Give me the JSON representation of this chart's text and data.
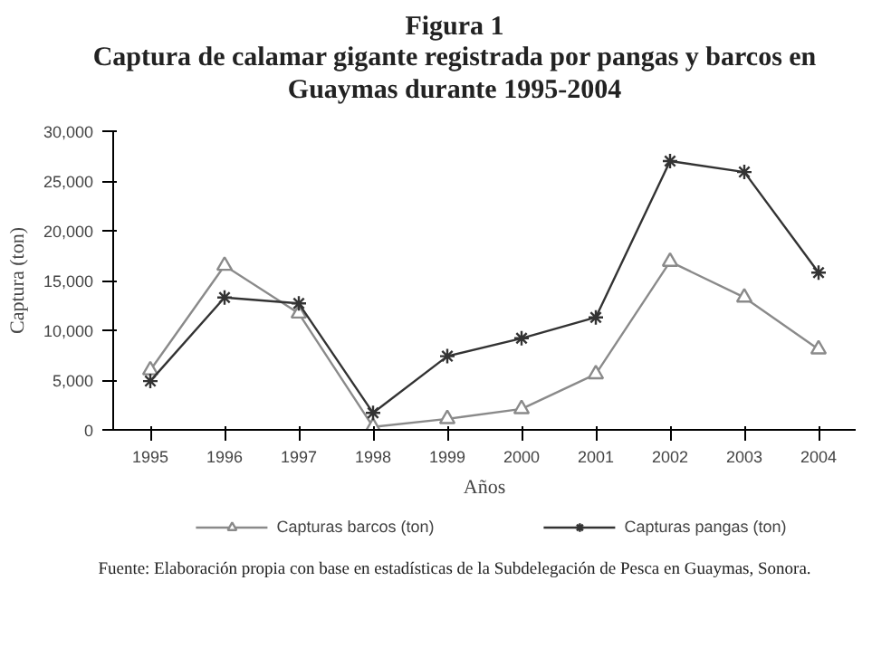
{
  "chart_data": {
    "type": "line",
    "title": "Figura 1",
    "subtitle": "Captura de calamar gigante registrada por pangas y barcos en Guaymas durante 1995-2004",
    "xlabel": "Años",
    "ylabel": "Captura (ton)",
    "categories": [
      "1995",
      "1996",
      "1997",
      "1998",
      "1999",
      "2000",
      "2001",
      "2002",
      "2003",
      "2004"
    ],
    "series": [
      {
        "name": "Capturas barcos (ton)",
        "color": "#8a8a8a",
        "marker": "triangle",
        "values": [
          6000,
          16500,
          11700,
          300,
          1100,
          2100,
          5600,
          16900,
          13300,
          8100
        ]
      },
      {
        "name": "Capturas pangas (ton)",
        "color": "#333333",
        "marker": "cross",
        "values": [
          4900,
          13300,
          12700,
          1700,
          7400,
          9200,
          11300,
          27000,
          25900,
          15800
        ]
      }
    ],
    "ylim": [
      0,
      30000
    ],
    "yticks": [
      0,
      {
        "value": 5000,
        "label": "5,000"
      },
      {
        "value": 10000,
        "label": "10,000"
      },
      {
        "value": 15000,
        "label": "15,000"
      },
      {
        "value": 20000,
        "label": "20,000"
      },
      {
        "value": 25000,
        "label": "25,000"
      },
      {
        "value": 30000,
        "label": "30,000"
      }
    ],
    "grid": false,
    "legend": "bottom",
    "line_style": "solid",
    "annotations": [
      "Fuente: Elaboración propia con base en estadísticas de la Subdelegación de Pesca en Guaymas, Sonora."
    ]
  }
}
